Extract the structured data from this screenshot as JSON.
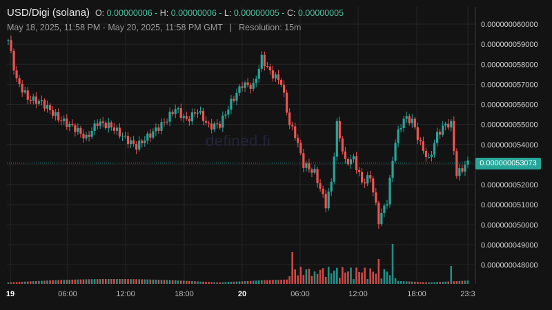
{
  "header": {
    "pair": "USD/Digi (solana)",
    "open_label": "O:",
    "open": "0.00000006",
    "high_label": "H:",
    "high": "0.00000006",
    "low_label": "L:",
    "low": "0.00000005",
    "close_label": "C:",
    "close": "0.00000005"
  },
  "subheader": {
    "range": "May 18, 2025, 11:58 PM - May 20, 2025, 11:58 PM GMT",
    "separator": "|",
    "resolution": "Resolution: 15m"
  },
  "watermark": "defined.fi",
  "colors": {
    "up": "#26a69a",
    "down": "#ef5350",
    "background": "#131313",
    "grid": "#2a2a2a"
  },
  "chart_data": {
    "type": "candlestick",
    "title": "USD/Digi (solana)",
    "ylim": [
      4.77e-08,
      6.05e-08
    ],
    "y_ticks": [
      "0.000000060000",
      "0.000000059000",
      "0.000000058000",
      "0.000000057000",
      "0.000000056000",
      "0.000000055000",
      "0.000000054000",
      "0.000000053000",
      "0.000000052000",
      "0.000000051000",
      "0.000000050000",
      "0.000000049000",
      "0.000000048000"
    ],
    "x_ticks": [
      "19",
      "06:00",
      "12:00",
      "18:00",
      "20",
      "06:00",
      "12:00",
      "18:00",
      "23:3"
    ],
    "current_price": "0.000000053073",
    "keypoints": [
      [
        0,
        59.2
      ],
      [
        3,
        57.2
      ],
      [
        7,
        56.3
      ],
      [
        12,
        56.1
      ],
      [
        18,
        55.3
      ],
      [
        24,
        54.8
      ],
      [
        28,
        54.3
      ],
      [
        32,
        55.1
      ],
      [
        37,
        54.9
      ],
      [
        42,
        54.3
      ],
      [
        46,
        53.9
      ],
      [
        51,
        54.5
      ],
      [
        56,
        55.1
      ],
      [
        60,
        55.8
      ],
      [
        64,
        55.2
      ],
      [
        68,
        55.7
      ],
      [
        72,
        54.9
      ],
      [
        76,
        55.0
      ],
      [
        80,
        56.1
      ],
      [
        84,
        57.0
      ],
      [
        88,
        56.9
      ],
      [
        91,
        58.3
      ],
      [
        94,
        57.6
      ],
      [
        98,
        57.1
      ],
      [
        101,
        55.0
      ],
      [
        103,
        54.5
      ],
      [
        106,
        53.0
      ],
      [
        110,
        52.6
      ],
      [
        114,
        51.0
      ],
      [
        116,
        52.1
      ],
      [
        118,
        55.0
      ],
      [
        121,
        53.1
      ],
      [
        124,
        53.3
      ],
      [
        127,
        52.1
      ],
      [
        130,
        52.4
      ],
      [
        133,
        50.2
      ],
      [
        136,
        51.2
      ],
      [
        139,
        54.2
      ],
      [
        142,
        55.3
      ],
      [
        145,
        55.2
      ],
      [
        148,
        54.0
      ],
      [
        151,
        53.2
      ],
      [
        154,
        54.5
      ],
      [
        157,
        55.0
      ],
      [
        159,
        55.0
      ],
      [
        161,
        52.5
      ],
      [
        165,
        53.1
      ]
    ],
    "candles": 166,
    "series": [
      {
        "name": "Volume",
        "values_relative": "spikes at Digi-20 04:00 (0.85), 16:00 (1.00), 20:00 (0.40)"
      }
    ]
  }
}
